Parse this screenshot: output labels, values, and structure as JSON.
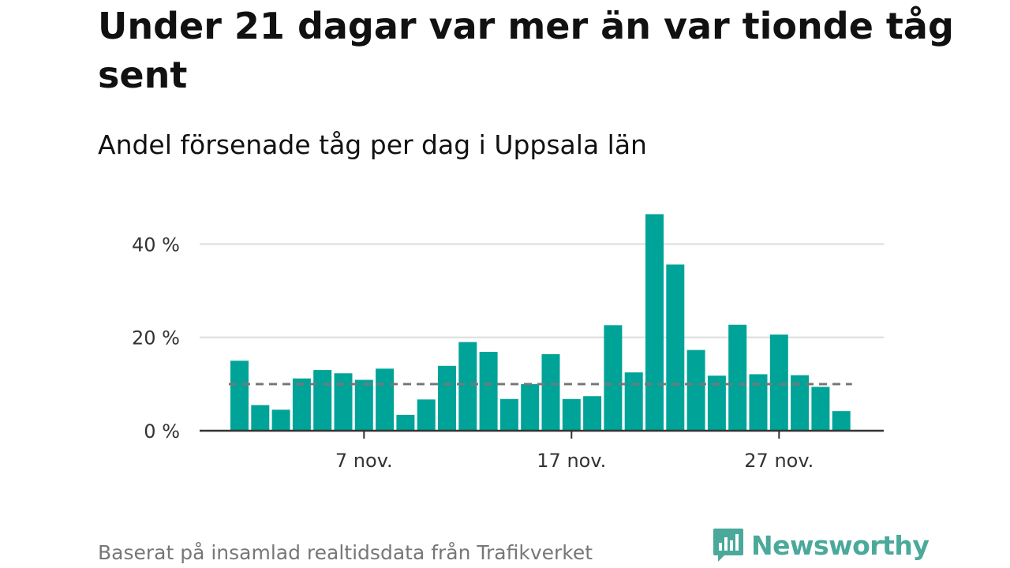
{
  "title": "Under 21 dagar var mer än var tionde tåg sent",
  "subtitle": "Andel försenade tåg per dag i Uppsala län",
  "source": "Baserat på insamlad realtidsdata från Trafikverket",
  "brand": {
    "name": "Newsworthy",
    "icon": "newsworthy-logo-icon",
    "color": "#4aa99a"
  },
  "colors": {
    "bar": "#00a398",
    "grid": "#dddddd",
    "axis": "#333333",
    "reference_line": "#777777"
  },
  "chart_data": {
    "type": "bar",
    "x": [
      "1 nov.",
      "2 nov.",
      "3 nov.",
      "4 nov.",
      "5 nov.",
      "6 nov.",
      "7 nov.",
      "8 nov.",
      "9 nov.",
      "10 nov.",
      "11 nov.",
      "12 nov.",
      "13 nov.",
      "14 nov.",
      "15 nov.",
      "16 nov.",
      "17 nov.",
      "18 nov.",
      "19 nov.",
      "20 nov.",
      "21 nov.",
      "22 nov.",
      "23 nov.",
      "24 nov.",
      "25 nov.",
      "26 nov.",
      "27 nov.",
      "28 nov.",
      "29 nov.",
      "30 nov."
    ],
    "values": [
      15,
      5.5,
      4.5,
      11.2,
      13,
      12.3,
      10.9,
      13.3,
      3.4,
      6.7,
      13.9,
      19,
      16.9,
      6.8,
      10,
      16.4,
      6.8,
      7.4,
      22.6,
      12.5,
      46.4,
      35.6,
      17.3,
      11.8,
      22.7,
      12.1,
      20.6,
      11.9,
      9.4,
      4.2
    ],
    "ylim": [
      0,
      48
    ],
    "yticks": [
      0,
      20,
      40
    ],
    "ytick_labels": [
      "0 %",
      "20 %",
      "40 %"
    ],
    "xticks": [
      "7 nov.",
      "17 nov.",
      "27 nov."
    ],
    "reference_line": 10,
    "grid": true,
    "xlabel": "",
    "ylabel": ""
  }
}
